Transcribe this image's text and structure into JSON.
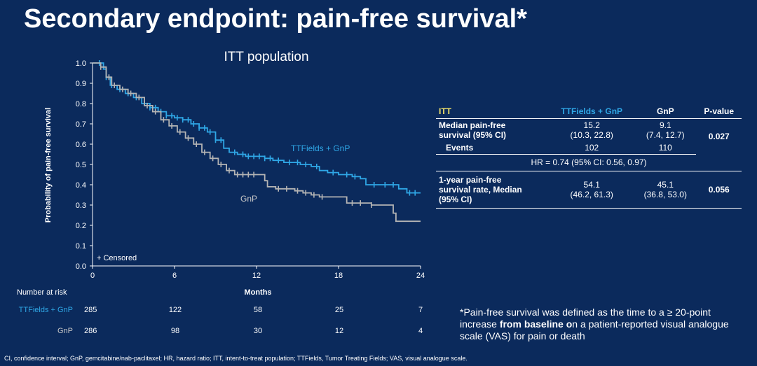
{
  "slide": {
    "title": "Secondary endpoint: pain-free survival*",
    "abbreviations": "CI, confidence interval; GnP, gemcitabine/nab-paclitaxel; HR, hazard ratio; ITT, intent-to-treat population; TTFields, Tumor Treating Fields; VAS, visual analogue scale."
  },
  "colors": {
    "background": "#0b2a5c",
    "ttfields": "#2fa7e6",
    "gnp": "#b4b4b4",
    "itt_header": "#f2e36a"
  },
  "chart_data": {
    "type": "line",
    "title": "ITT population",
    "xlabel": "Months",
    "ylabel": "Probability of pain-free survival",
    "xlim": [
      0,
      24
    ],
    "ylim": [
      0,
      1
    ],
    "x_ticks": [
      "0",
      "6",
      "12",
      "18",
      "24"
    ],
    "y_ticks": [
      "0.0",
      "0.1",
      "0.2",
      "0.3",
      "0.4",
      "0.5",
      "0.6",
      "0.7",
      "0.8",
      "0.9",
      "1.0"
    ],
    "censored_label": "+ Censored",
    "series": [
      {
        "name": "TTFields + GnP",
        "color": "#2fa7e6",
        "points": [
          [
            0,
            1.0
          ],
          [
            0.5,
            1.0
          ],
          [
            0.8,
            0.97
          ],
          [
            1.0,
            0.93
          ],
          [
            1.3,
            0.89
          ],
          [
            1.8,
            0.87
          ],
          [
            2.4,
            0.85
          ],
          [
            3.0,
            0.83
          ],
          [
            3.6,
            0.8
          ],
          [
            4.2,
            0.78
          ],
          [
            4.8,
            0.76
          ],
          [
            5.4,
            0.74
          ],
          [
            6.0,
            0.73
          ],
          [
            6.6,
            0.72
          ],
          [
            7.2,
            0.7
          ],
          [
            7.8,
            0.68
          ],
          [
            8.4,
            0.66
          ],
          [
            9.0,
            0.62
          ],
          [
            9.6,
            0.58
          ],
          [
            10.0,
            0.56
          ],
          [
            10.6,
            0.55
          ],
          [
            11.2,
            0.54
          ],
          [
            12.0,
            0.54
          ],
          [
            12.6,
            0.53
          ],
          [
            13.2,
            0.52
          ],
          [
            14.0,
            0.51
          ],
          [
            14.6,
            0.51
          ],
          [
            15.2,
            0.5
          ],
          [
            16.0,
            0.49
          ],
          [
            16.6,
            0.47
          ],
          [
            17.2,
            0.46
          ],
          [
            18.0,
            0.45
          ],
          [
            19.0,
            0.44
          ],
          [
            19.6,
            0.43
          ],
          [
            20.0,
            0.4
          ],
          [
            21.0,
            0.4
          ],
          [
            22.0,
            0.4
          ],
          [
            22.4,
            0.38
          ],
          [
            23.0,
            0.36
          ],
          [
            24.0,
            0.36
          ]
        ],
        "censored": [
          0.5,
          1.0,
          1.4,
          2.0,
          2.6,
          3.2,
          3.8,
          4.2,
          4.6,
          5.0,
          5.4,
          5.8,
          6.2,
          6.6,
          7.0,
          7.4,
          7.8,
          8.2,
          8.6,
          9.0,
          9.4,
          10.4,
          11.0,
          11.4,
          11.8,
          12.2,
          12.6,
          13.0,
          13.6,
          14.4,
          15.0,
          15.6,
          16.4,
          17.6,
          18.6,
          19.2,
          20.6,
          21.4,
          22.0,
          23.2,
          23.6
        ]
      },
      {
        "name": "GnP",
        "color": "#b4b4b4",
        "points": [
          [
            0,
            1.0
          ],
          [
            0.6,
            0.98
          ],
          [
            1.0,
            0.93
          ],
          [
            1.4,
            0.89
          ],
          [
            2.0,
            0.87
          ],
          [
            2.6,
            0.85
          ],
          [
            3.2,
            0.83
          ],
          [
            3.8,
            0.79
          ],
          [
            4.4,
            0.76
          ],
          [
            5.0,
            0.72
          ],
          [
            5.6,
            0.69
          ],
          [
            6.2,
            0.66
          ],
          [
            6.8,
            0.63
          ],
          [
            7.4,
            0.6
          ],
          [
            8.0,
            0.56
          ],
          [
            8.6,
            0.53
          ],
          [
            9.2,
            0.5
          ],
          [
            9.8,
            0.47
          ],
          [
            10.4,
            0.45
          ],
          [
            11.4,
            0.45
          ],
          [
            12.6,
            0.42
          ],
          [
            12.8,
            0.39
          ],
          [
            13.4,
            0.38
          ],
          [
            14.0,
            0.38
          ],
          [
            14.8,
            0.37
          ],
          [
            15.4,
            0.36
          ],
          [
            16.0,
            0.35
          ],
          [
            16.6,
            0.34
          ],
          [
            17.4,
            0.34
          ],
          [
            18.0,
            0.34
          ],
          [
            18.6,
            0.31
          ],
          [
            19.2,
            0.31
          ],
          [
            20.0,
            0.31
          ],
          [
            20.4,
            0.3
          ],
          [
            21.0,
            0.3
          ],
          [
            22.0,
            0.26
          ],
          [
            22.2,
            0.22
          ],
          [
            24.0,
            0.22
          ]
        ],
        "censored": [
          0.6,
          1.2,
          1.6,
          2.2,
          2.8,
          3.4,
          4.0,
          4.6,
          5.2,
          5.8,
          6.4,
          7.0,
          7.6,
          8.2,
          8.8,
          9.4,
          10.0,
          10.6,
          11.0,
          11.4,
          11.8,
          13.6,
          14.2,
          15.0,
          15.6,
          16.2,
          16.8,
          19.0,
          19.6,
          20.4
        ]
      }
    ]
  },
  "risk_table": {
    "header": "Number at risk",
    "rows": [
      {
        "label": "TTFields + GnP",
        "values": [
          "285",
          "122",
          "58",
          "25",
          "7"
        ]
      },
      {
        "label": "GnP",
        "values": [
          "286",
          "98",
          "30",
          "12",
          "4"
        ]
      }
    ]
  },
  "results_table": {
    "headers": [
      "ITT",
      "TTFields + GnP",
      "GnP",
      "P-value"
    ],
    "median_label_line1": "Median pain-free",
    "median_label_line2": "survival (95% CI)",
    "median_tt": "15.2",
    "median_tt_ci": "(10.3, 22.8)",
    "median_gnp": "9.1",
    "median_gnp_ci": "(7.4, 12.7)",
    "median_p": "0.027",
    "events_label": "Events",
    "events_tt": "102",
    "events_gnp": "110",
    "hr": "HR = 0.74 (95% CI: 0.56, 0.97)",
    "oneyr_label_line1": "1-year pain-free",
    "oneyr_label_line2": "survival rate, Median",
    "oneyr_label_line3": "(95% CI)",
    "oneyr_tt": "54.1",
    "oneyr_tt_ci": "(46.2, 61.3)",
    "oneyr_gnp": "45.1",
    "oneyr_gnp_ci": "(36.8, 53.0)",
    "oneyr_p": "0.056"
  },
  "footnote": {
    "part1": "*Pain-free survival was defined as the time to a ≥ 20-point increase ",
    "bold": "from baseline o",
    "part2": "n a patient-reported visual analogue scale (VAS) for pain or death"
  }
}
